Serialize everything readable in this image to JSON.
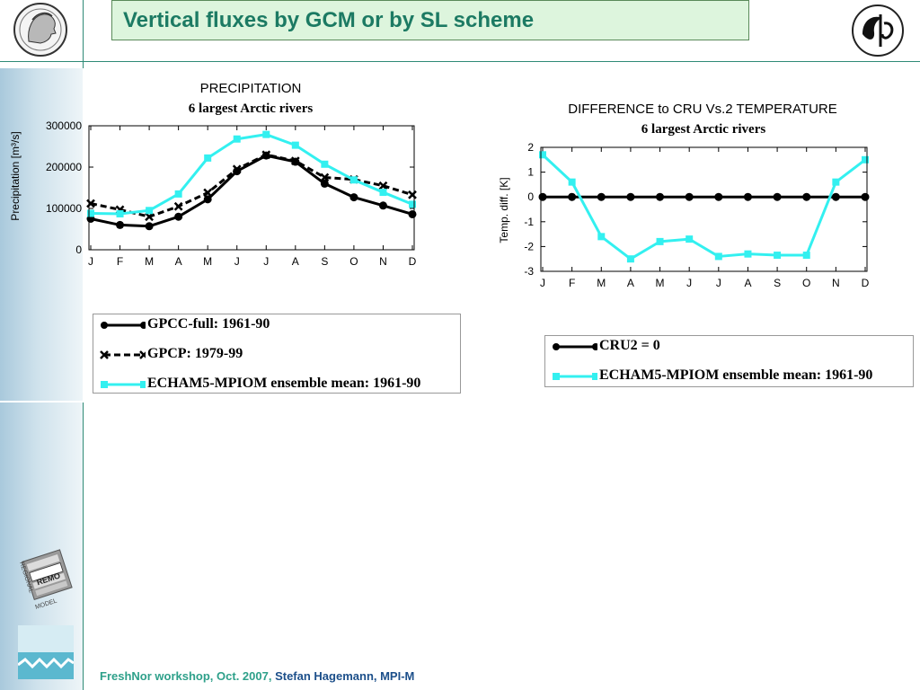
{
  "slide": {
    "title": "Vertical fluxes by GCM or by SL scheme",
    "footer_event": "FreshNor workshop, Oct. 2007,",
    "footer_author": "Stefan Hagemann, MPI-M",
    "logo_text_lines": [
      "REGIONAL",
      "REMO",
      "MODEL"
    ],
    "colors": {
      "title": "#1c7a63",
      "title_bg": "#ddf5dd",
      "accent_line": "#2f8a76",
      "cyan": "#33f0f0",
      "footer_event": "#2ea08a",
      "footer_author": "#1c4f8a"
    }
  },
  "chart_data": [
    {
      "type": "line",
      "title": "PRECIPITATION",
      "subtitle": "6 largest Arctic rivers",
      "ylabel": "Precipitation [m³/s]",
      "xlabel": "",
      "categories": [
        "J",
        "F",
        "M",
        "A",
        "M",
        "J",
        "J",
        "A",
        "S",
        "O",
        "N",
        "D"
      ],
      "ylim": [
        0,
        300000
      ],
      "yticks": [
        0,
        100000,
        200000,
        300000
      ],
      "grid": false,
      "series": [
        {
          "name": "GPCC-full: 1961-90",
          "color": "#000000",
          "dash": "solid",
          "marker": "circle",
          "values": [
            75000,
            60000,
            57000,
            80000,
            122000,
            190000,
            228000,
            213000,
            160000,
            127000,
            107000,
            86000
          ]
        },
        {
          "name": "GPCP: 1979-99",
          "color": "#000000",
          "dash": "dashed",
          "marker": "x",
          "values": [
            112000,
            97000,
            80000,
            105000,
            138000,
            195000,
            230000,
            215000,
            175000,
            170000,
            155000,
            133000
          ]
        },
        {
          "name": "ECHAM5-MPIOM ensemble mean: 1961-90",
          "color": "#33f0f0",
          "dash": "solid",
          "marker": "square",
          "values": [
            88000,
            87000,
            95000,
            135000,
            222000,
            268000,
            279000,
            253000,
            207000,
            169000,
            139000,
            110000
          ]
        }
      ]
    },
    {
      "type": "line",
      "title": "DIFFERENCE to CRU Vs.2 TEMPERATURE",
      "subtitle": "6 largest Arctic rivers",
      "ylabel": "Temp. diff. [K]",
      "xlabel": "",
      "categories": [
        "J",
        "F",
        "M",
        "A",
        "M",
        "J",
        "J",
        "A",
        "S",
        "O",
        "N",
        "D"
      ],
      "ylim": [
        -3,
        2
      ],
      "yticks": [
        -3,
        -2,
        -1,
        0,
        1,
        2
      ],
      "grid": false,
      "series": [
        {
          "name": "CRU2 = 0",
          "color": "#000000",
          "dash": "solid",
          "marker": "circle",
          "values": [
            0,
            0,
            0,
            0,
            0,
            0,
            0,
            0,
            0,
            0,
            0,
            0
          ]
        },
        {
          "name": "ECHAM5-MPIOM ensemble mean: 1961-90",
          "color": "#33f0f0",
          "dash": "solid",
          "marker": "square",
          "values": [
            1.7,
            0.6,
            -1.6,
            -2.5,
            -1.8,
            -1.7,
            -2.4,
            -2.3,
            -2.35,
            -2.35,
            0.6,
            1.5
          ]
        }
      ]
    }
  ]
}
